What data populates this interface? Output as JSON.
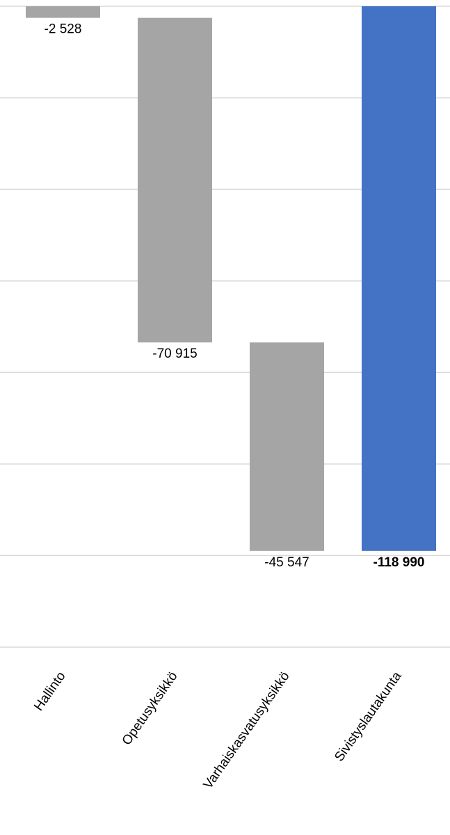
{
  "chart_data": {
    "type": "waterfall",
    "categories": [
      "Hallinto",
      "Opetusyksikkö",
      "Varhaiskasvatusyksikkö",
      "Sivistyslautakunta"
    ],
    "values": [
      -2528,
      -70915,
      -45547,
      -118990
    ],
    "value_labels": [
      "-2 528",
      "-70 915",
      "-45 547",
      "-118 990"
    ],
    "measure": [
      "relative",
      "relative",
      "relative",
      "total"
    ],
    "colors": [
      "#a5a5a5",
      "#a5a5a5",
      "#a5a5a5",
      "#4472c4"
    ],
    "ylim": [
      -140000,
      0
    ],
    "yticks": [
      0,
      -20000,
      -40000,
      -60000,
      -80000,
      -100000,
      -120000,
      -140000
    ],
    "grid": true
  }
}
